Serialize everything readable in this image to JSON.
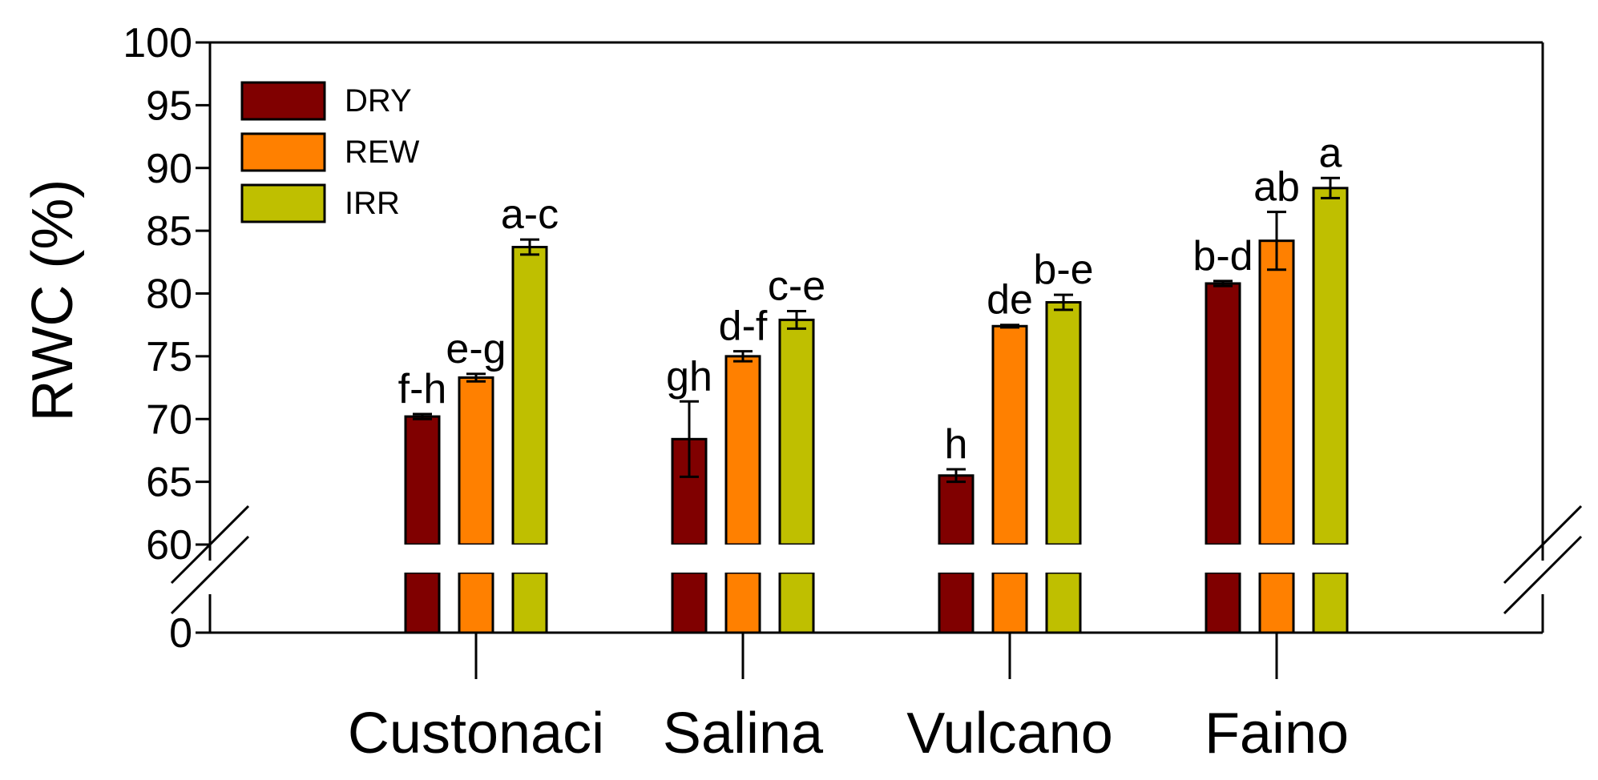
{
  "chart_data": {
    "type": "bar",
    "title": "",
    "xlabel": "",
    "ylabel": "RWC (%)",
    "ylim": [
      60,
      100
    ],
    "yticks": [
      0,
      60,
      65,
      70,
      75,
      80,
      85,
      90,
      95,
      100
    ],
    "axis_break": {
      "from": 0,
      "to": 60
    },
    "grid": false,
    "legend_position": "top-left",
    "categories": [
      "Custonaci",
      "Salina",
      "Vulcano",
      "Faino"
    ],
    "series": [
      {
        "name": "DRY",
        "color": "#800000",
        "values": [
          70.2,
          68.4,
          65.5,
          80.8
        ],
        "errors": [
          0.2,
          3.0,
          0.5,
          0.2
        ],
        "letters": [
          "f-h",
          "gh",
          "h",
          "b-d"
        ]
      },
      {
        "name": "REW",
        "color": "#FF8000",
        "values": [
          73.3,
          75.0,
          77.4,
          84.2
        ],
        "errors": [
          0.3,
          0.4,
          0.1,
          2.3
        ],
        "letters": [
          "e-g",
          "d-f",
          "de",
          "ab"
        ]
      },
      {
        "name": "IRR",
        "color": "#BFBF00",
        "values": [
          83.7,
          77.9,
          79.3,
          88.4
        ],
        "errors": [
          0.6,
          0.7,
          0.6,
          0.8
        ],
        "letters": [
          "a-c",
          "c-e",
          "b-e",
          "a"
        ]
      }
    ]
  }
}
